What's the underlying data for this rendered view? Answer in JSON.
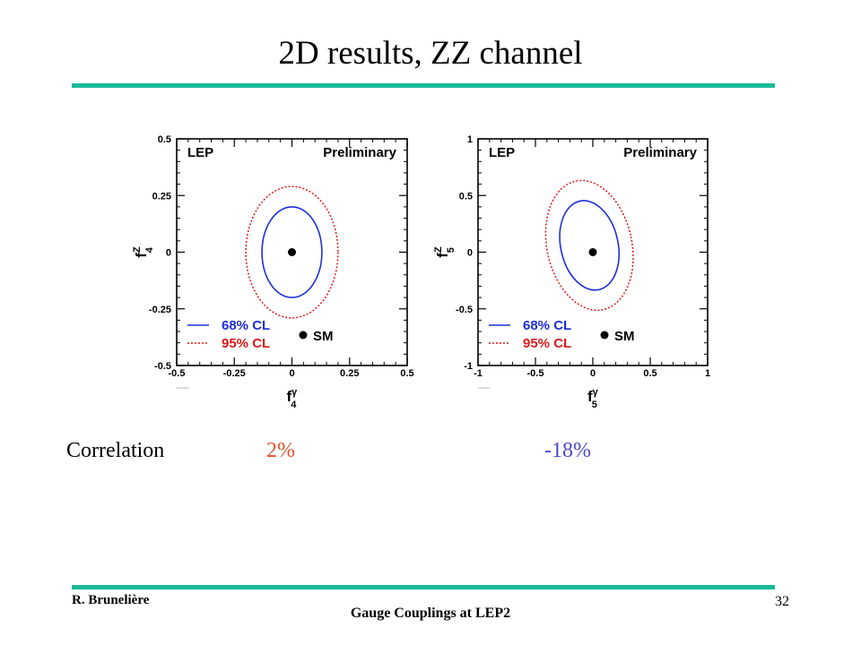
{
  "slide": {
    "title": "2D results, ZZ channel",
    "accent_color": "#1ab997",
    "correlation_label": "Correlation",
    "author": "R. Brunelière",
    "talk_title": "Gauge Couplings at LEP2",
    "page_number": "32"
  },
  "correlations": [
    {
      "value": "2%",
      "color": "#e0522a"
    },
    {
      "value": "-18%",
      "color": "#4a4ac8"
    }
  ],
  "chart_data": [
    {
      "type": "scatter",
      "labels": {
        "top_left": "LEP",
        "top_right": "Preliminary"
      },
      "xlabel": "f",
      "xlabel_sup": "γ",
      "xlabel_sub": "4",
      "ylabel": "f",
      "ylabel_sup": "Z",
      "ylabel_sub": "4",
      "xlim": [
        -0.5,
        0.5
      ],
      "ylim": [
        -0.5,
        0.5
      ],
      "xticks": [
        "-0.5",
        "-0.25",
        "0",
        "0.25",
        "0.5"
      ],
      "yticks": [
        "0.5",
        "0.25",
        "0",
        "-0.25",
        "-0.5"
      ],
      "legend": [
        {
          "name": "68% CL",
          "color": "#1f2fd8",
          "style": "solid"
        },
        {
          "name": "95% CL",
          "color": "#e01818",
          "style": "dotted"
        },
        {
          "name": "SM",
          "color": "#000000",
          "style": "marker"
        }
      ],
      "legend_position": "bottom-left",
      "sm_point": [
        0,
        0
      ],
      "contours": [
        {
          "name": "68% CL",
          "center": [
            0,
            0
          ],
          "half_widths": [
            0.13,
            0.2
          ],
          "rotation_deg": 0
        },
        {
          "name": "95% CL",
          "center": [
            0,
            0
          ],
          "half_widths": [
            0.2,
            0.29
          ],
          "rotation_deg": 0
        }
      ]
    },
    {
      "type": "scatter",
      "labels": {
        "top_left": "LEP",
        "top_right": "Preliminary"
      },
      "xlabel": "f",
      "xlabel_sup": "γ",
      "xlabel_sub": "5",
      "ylabel": "f",
      "ylabel_sup": "Z",
      "ylabel_sub": "5",
      "xlim": [
        -1,
        1
      ],
      "ylim": [
        -1,
        1
      ],
      "xticks": [
        "-1",
        "-0.5",
        "0",
        "0.5",
        "1"
      ],
      "yticks": [
        "1",
        "0.5",
        "0",
        "-0.5",
        "-1"
      ],
      "legend": [
        {
          "name": "68% CL",
          "color": "#1f2fd8",
          "style": "solid"
        },
        {
          "name": "95% CL",
          "color": "#e01818",
          "style": "dotted"
        },
        {
          "name": "SM",
          "color": "#000000",
          "style": "marker"
        }
      ],
      "legend_position": "bottom-left",
      "sm_point": [
        0,
        0
      ],
      "contours": [
        {
          "name": "68% CL",
          "center": [
            -0.03,
            0.06
          ],
          "half_widths": [
            0.25,
            0.4
          ],
          "rotation_deg": -12
        },
        {
          "name": "95% CL",
          "center": [
            -0.03,
            0.06
          ],
          "half_widths": [
            0.37,
            0.58
          ],
          "rotation_deg": -12
        }
      ]
    }
  ]
}
